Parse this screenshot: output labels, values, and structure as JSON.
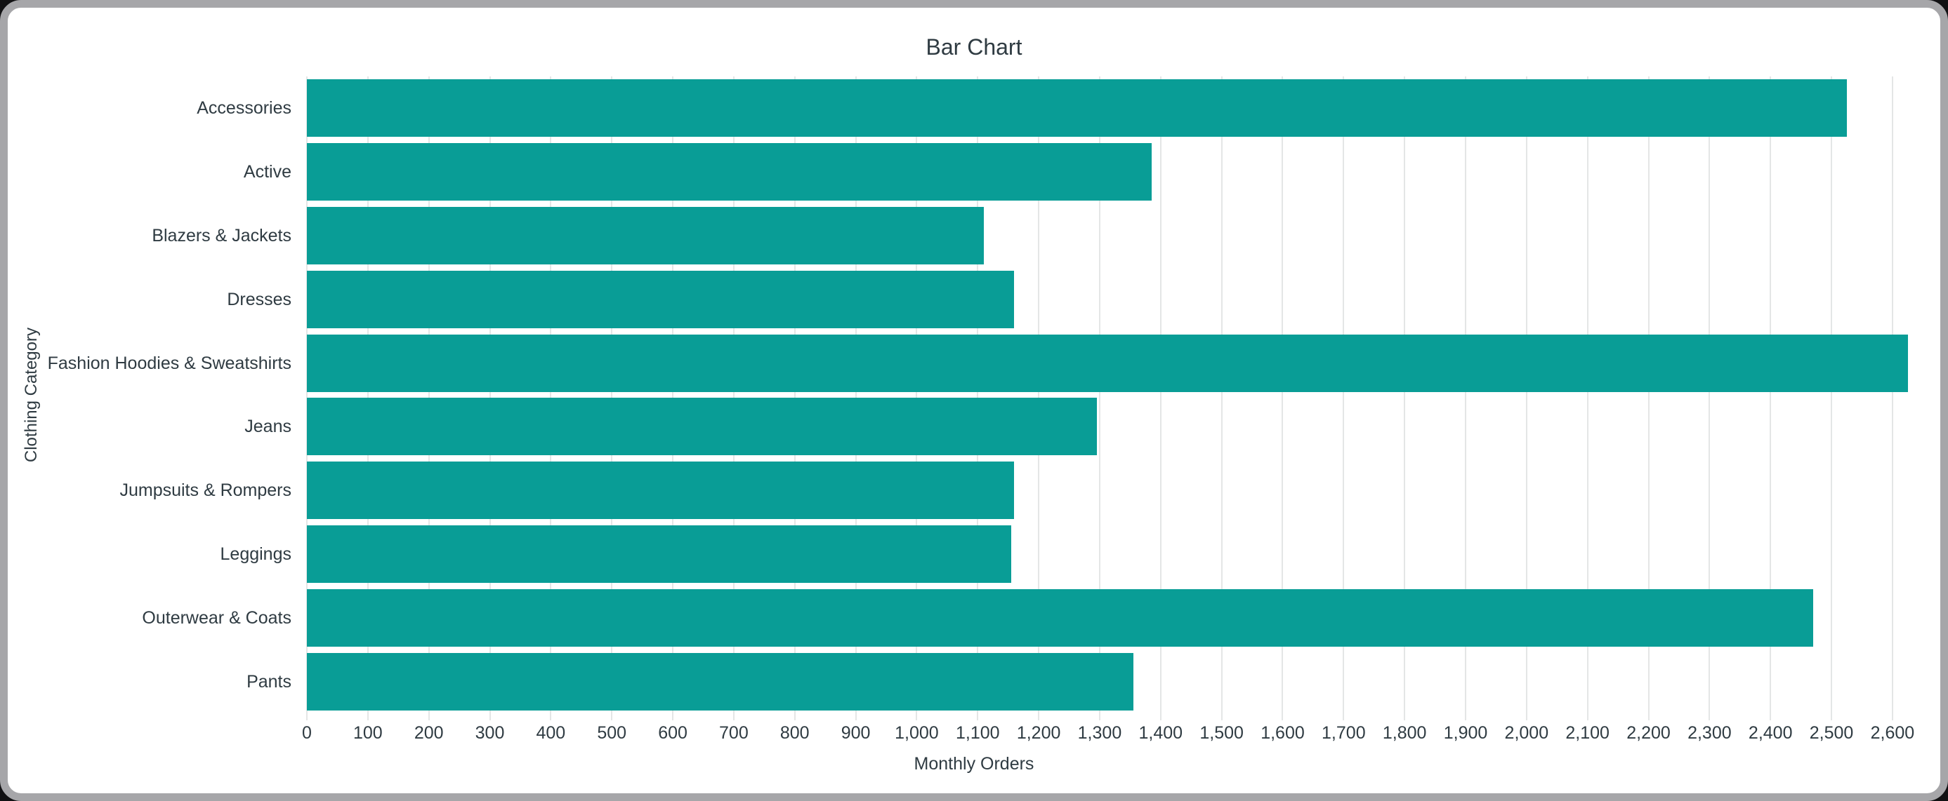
{
  "colors": {
    "bar": "#099d96",
    "grid": "#e4e6e6",
    "text": "#2f3b42",
    "frame_border": "#a6a6a9",
    "card_background": "#ffffff"
  },
  "chart_data": {
    "type": "bar",
    "orientation": "horizontal",
    "title": "Bar Chart",
    "xlabel": "Monthly Orders",
    "ylabel": "Clothing Category",
    "categories": [
      "Accessories",
      "Active",
      "Blazers & Jackets",
      "Dresses",
      "Fashion Hoodies & Sweatshirts",
      "Jeans",
      "Jumpsuits & Rompers",
      "Leggings",
      "Outerwear & Coats",
      "Pants"
    ],
    "values": [
      2525,
      1385,
      1110,
      1160,
      2625,
      1295,
      1160,
      1155,
      2470,
      1355
    ],
    "xlim": [
      0,
      2660
    ],
    "xtick_labels": [
      "0",
      "100",
      "200",
      "300",
      "400",
      "500",
      "600",
      "700",
      "800",
      "900",
      "1,000",
      "1,100",
      "1,200",
      "1,300",
      "1,400",
      "1,500",
      "1,600",
      "1,700",
      "1,800",
      "1,900",
      "2,000",
      "2,100",
      "2,200",
      "2,300",
      "2,400",
      "2,500",
      "2,600"
    ],
    "grid": true,
    "legend": "none"
  }
}
